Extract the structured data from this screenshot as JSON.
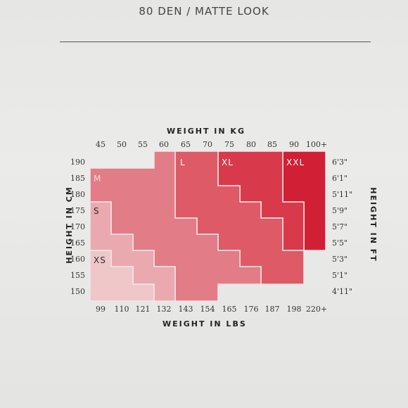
{
  "header": {
    "title": "80 DEN / MATTE LOOK"
  },
  "axes": {
    "top_title": "WEIGHT IN KG",
    "bottom_title": "WEIGHT IN LBS",
    "left_title": "HEIGHT IN CM",
    "right_title": "HEIGHT IN FT",
    "kg_ticks": [
      "45",
      "50",
      "55",
      "60",
      "65",
      "70",
      "75",
      "80",
      "85",
      "90",
      "100+"
    ],
    "lbs_ticks": [
      "99",
      "110",
      "121",
      "132",
      "143",
      "154",
      "165",
      "176",
      "187",
      "198",
      "220+"
    ],
    "cm_ticks": [
      "190",
      "185",
      "180",
      "175",
      "170",
      "165",
      "160",
      "155",
      "150"
    ],
    "ft_ticks": [
      "6'3\"",
      "6'1\"",
      "5'11\"",
      "5'9\"",
      "5'7\"",
      "5'5\"",
      "5'3\"",
      "5'1\"",
      "4'11\""
    ]
  },
  "sizes": [
    {
      "label": "XS",
      "color": "#efc7c9",
      "label_color": "#2b2b2b"
    },
    {
      "label": "S",
      "color": "#eaa9ae",
      "label_color": "#2b2b2b"
    },
    {
      "label": "M",
      "color": "#e27c86",
      "label_color": "#f4dada"
    },
    {
      "label": "L",
      "color": "#dd5a66",
      "label_color": "#ffffff"
    },
    {
      "label": "XL",
      "color": "#d83a4c",
      "label_color": "#ffffff"
    },
    {
      "label": "XXL",
      "color": "#d11f35",
      "label_color": "#ffffff"
    }
  ]
}
